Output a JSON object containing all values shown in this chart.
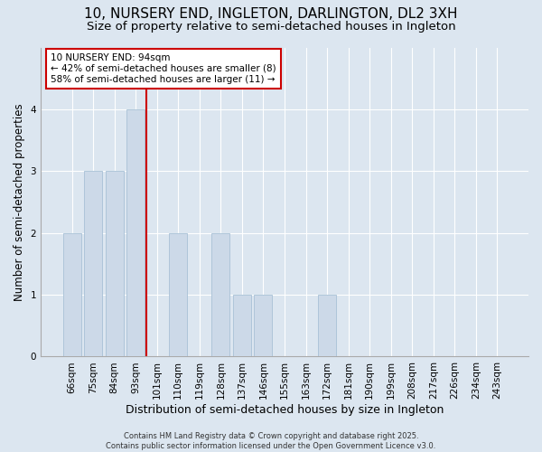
{
  "title": "10, NURSERY END, INGLETON, DARLINGTON, DL2 3XH",
  "subtitle": "Size of property relative to semi-detached houses in Ingleton",
  "xlabel": "Distribution of semi-detached houses by size in Ingleton",
  "ylabel": "Number of semi-detached properties",
  "categories": [
    "66sqm",
    "75sqm",
    "84sqm",
    "93sqm",
    "101sqm",
    "110sqm",
    "119sqm",
    "128sqm",
    "137sqm",
    "146sqm",
    "155sqm",
    "163sqm",
    "172sqm",
    "181sqm",
    "190sqm",
    "199sqm",
    "208sqm",
    "217sqm",
    "226sqm",
    "234sqm",
    "243sqm"
  ],
  "values": [
    2,
    3,
    3,
    4,
    0,
    2,
    0,
    2,
    1,
    1,
    0,
    0,
    1,
    0,
    0,
    0,
    0,
    0,
    0,
    0,
    0
  ],
  "bar_color": "#ccd9e8",
  "bar_edge_color": "#a8c0d6",
  "vline_x_index": 3,
  "vline_color": "#cc0000",
  "annotation_text": "10 NURSERY END: 94sqm\n← 42% of semi-detached houses are smaller (8)\n58% of semi-detached houses are larger (11) →",
  "annotation_box_color": "#ffffff",
  "annotation_box_edge": "#cc0000",
  "ylim": [
    0,
    5
  ],
  "yticks": [
    0,
    1,
    2,
    3,
    4
  ],
  "background_color": "#dce6f0",
  "plot_bg_color": "#dce6f0",
  "footer_text": "Contains HM Land Registry data © Crown copyright and database right 2025.\nContains public sector information licensed under the Open Government Licence v3.0.",
  "title_fontsize": 11,
  "subtitle_fontsize": 9.5,
  "xlabel_fontsize": 9,
  "ylabel_fontsize": 8.5,
  "tick_fontsize": 7.5,
  "annotation_fontsize": 7.5,
  "footer_fontsize": 6
}
